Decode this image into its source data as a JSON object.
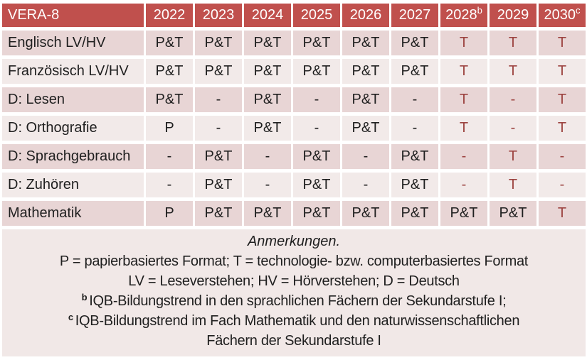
{
  "table": {
    "corner_label": "VERA-8",
    "years": [
      {
        "label": "2022",
        "sup": ""
      },
      {
        "label": "2023",
        "sup": ""
      },
      {
        "label": "2024",
        "sup": ""
      },
      {
        "label": "2025",
        "sup": ""
      },
      {
        "label": "2026",
        "sup": ""
      },
      {
        "label": "2027",
        "sup": ""
      },
      {
        "label": "2028",
        "sup": "b"
      },
      {
        "label": "2029",
        "sup": ""
      },
      {
        "label": "2030",
        "sup": "c"
      }
    ],
    "rows": [
      {
        "label": "Englisch LV/HV",
        "cells": [
          "P&T",
          "P&T",
          "P&T",
          "P&T",
          "P&T",
          "P&T",
          "T",
          "T",
          "T"
        ]
      },
      {
        "label": "Französisch LV/HV",
        "cells": [
          "P&T",
          "P&T",
          "P&T",
          "P&T",
          "P&T",
          "P&T",
          "T",
          "T",
          "T"
        ]
      },
      {
        "label": "D: Lesen",
        "cells": [
          "P&T",
          "-",
          "P&T",
          "-",
          "P&T",
          "-",
          "T",
          "-",
          "T"
        ]
      },
      {
        "label": "D: Orthografie",
        "cells": [
          "P",
          "-",
          "P&T",
          "-",
          "P&T",
          "-",
          "T",
          "-",
          "T"
        ]
      },
      {
        "label": "D: Sprachgebrauch",
        "cells": [
          "-",
          "P&T",
          "-",
          "P&T",
          "-",
          "P&T",
          "-",
          "T",
          "-"
        ]
      },
      {
        "label": "D: Zuhören",
        "cells": [
          "-",
          "P&T",
          "-",
          "P&T",
          "-",
          "P&T",
          "-",
          "T",
          "-"
        ]
      },
      {
        "label": "Mathematik",
        "cells": [
          "P",
          "P&T",
          "P&T",
          "P&T",
          "P&T",
          "P&T",
          "P&T",
          "P&T",
          "T"
        ]
      }
    ]
  },
  "notes": {
    "heading": "Anmerkungen.",
    "lines": [
      {
        "sup": "",
        "text": "P = papierbasiertes Format; T = technologie- bzw. computerbasiertes Format"
      },
      {
        "sup": "",
        "text": "LV = Leseverstehen; HV = Hörverstehen; D = Deutsch"
      },
      {
        "sup": "b",
        "text": "IQB-Bildungstrend in den sprachlichen Fächern der Sekundarstufe I;"
      },
      {
        "sup": "c",
        "text": "IQB-Bildungstrend im Fach Mathematik und den naturwissenschaftlichen"
      },
      {
        "sup": "",
        "text": "Fächern der Sekundarstufe I"
      }
    ]
  },
  "colors": {
    "header_bg": "#C0504D",
    "header_text": "#FFFFFF",
    "row_odd_bg": "#E8D5D5",
    "row_even_bg": "#F2EAE9",
    "notes_bg": "#F1E8E7",
    "body_text": "#1F1F1F",
    "tech_text": "#9C4340",
    "page_bg": "#FFFFFF"
  }
}
